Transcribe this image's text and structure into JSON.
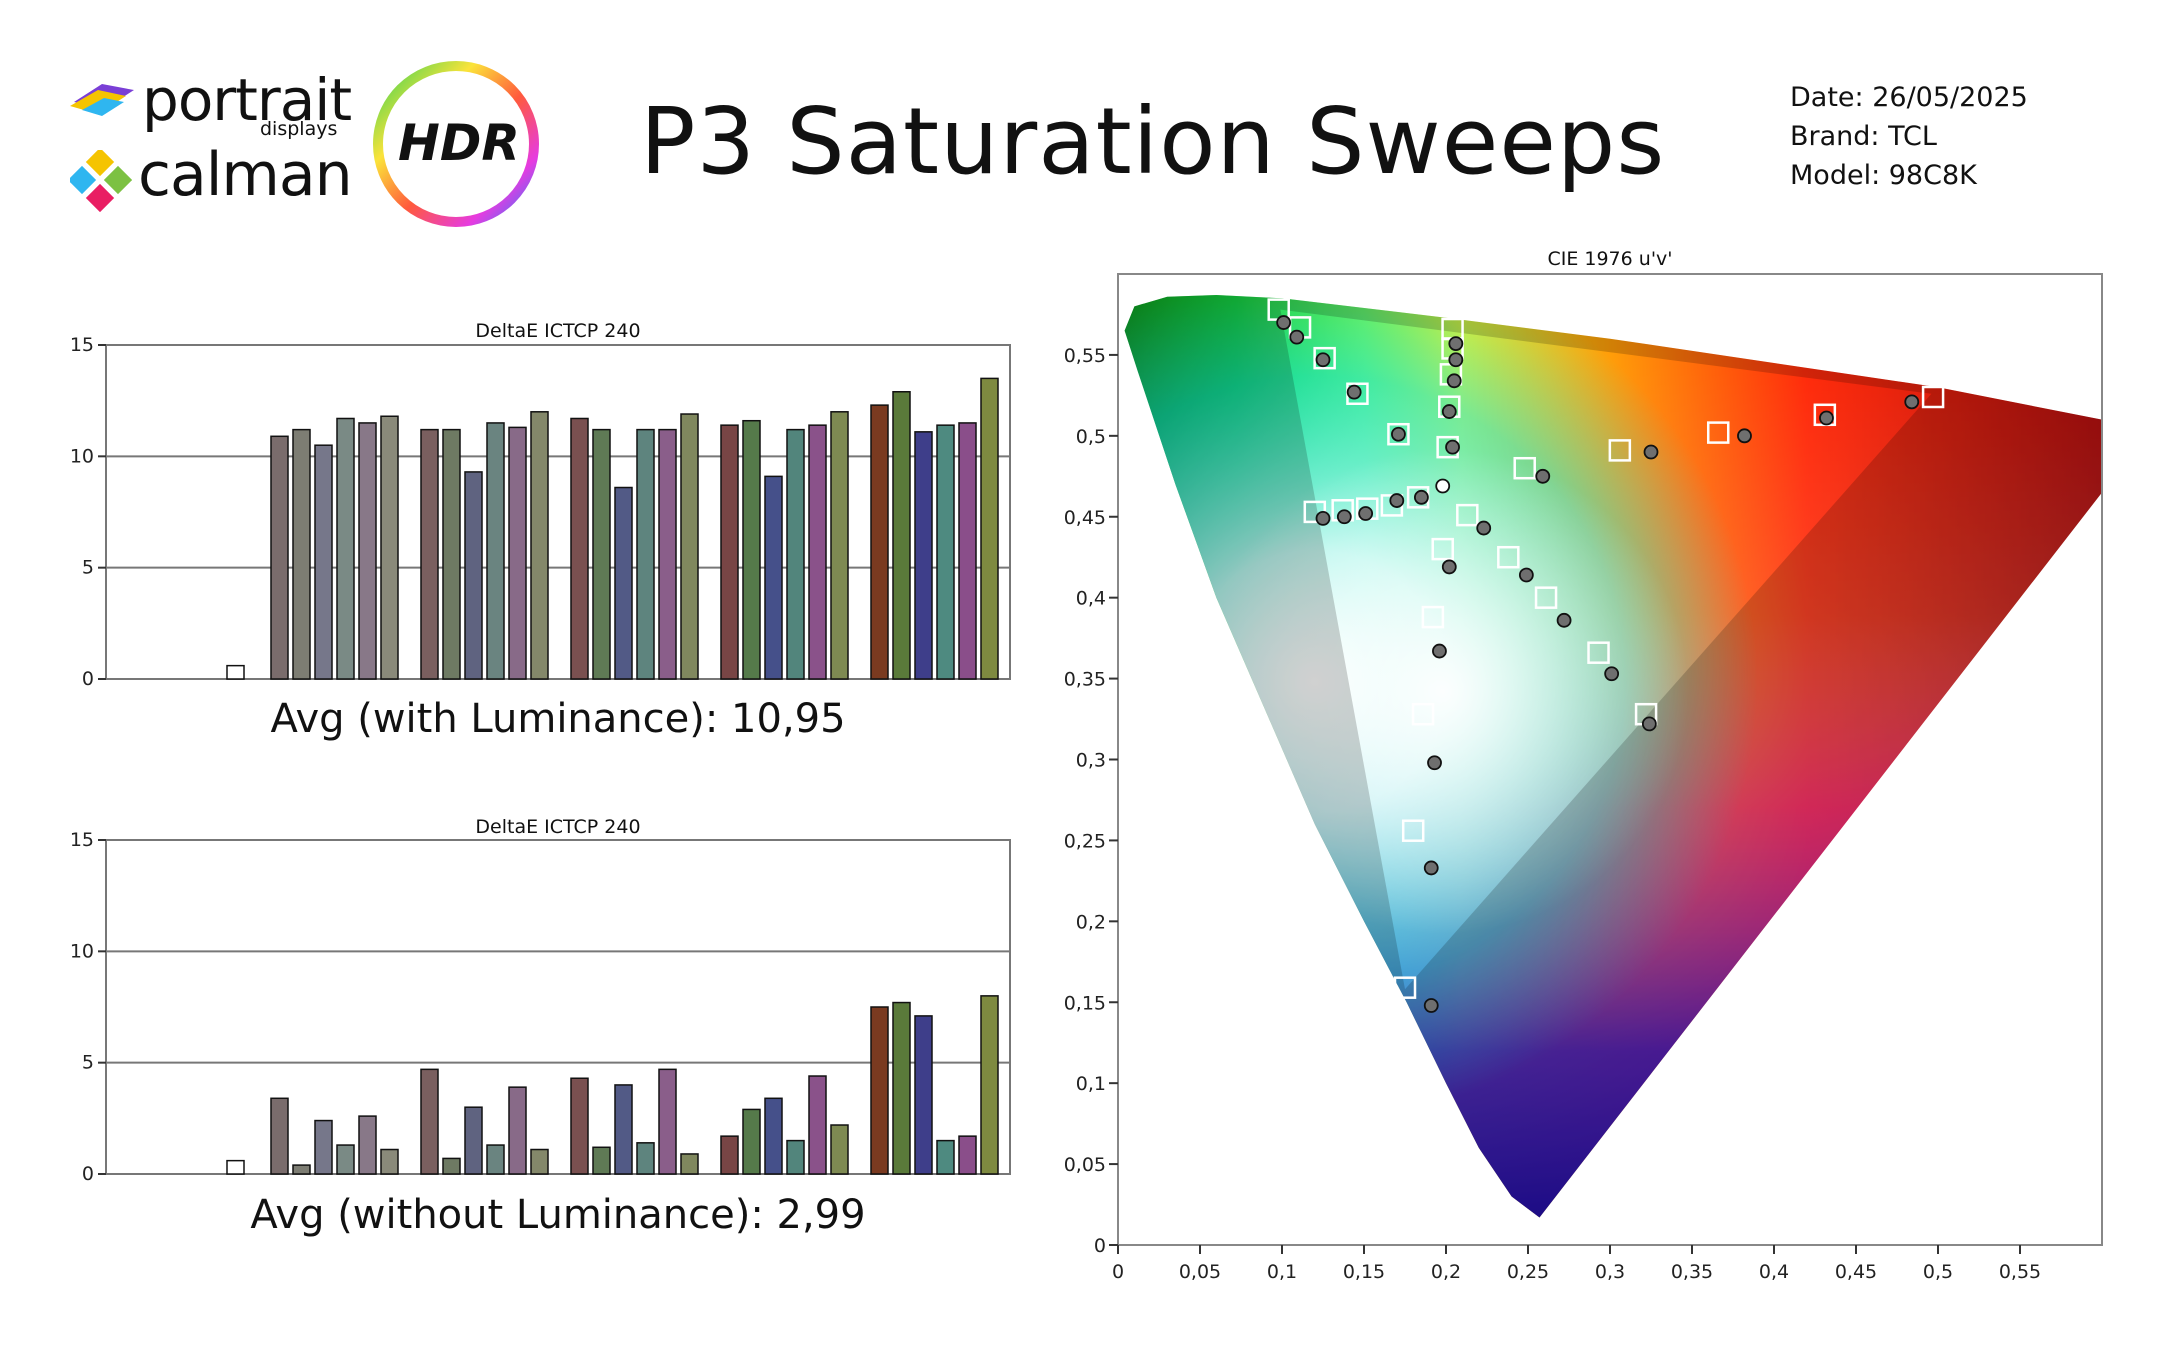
{
  "header": {
    "title": "P3 Saturation Sweeps",
    "logo_top": "portrait",
    "logo_top_sub": "displays",
    "logo_bottom": "calman",
    "badge": "HDR",
    "date": "Date: 26/05/2025",
    "brand": "Brand: TCL",
    "model": "Model: 98C8K"
  },
  "chart_data": [
    {
      "type": "bar",
      "title": "DeltaE ICTCP 240",
      "footer": "Avg (with Luminance): 10,95",
      "ylim": [
        0,
        15
      ],
      "yticks": [
        "0",
        "5",
        "10",
        "15"
      ],
      "groups": [
        {
          "values": [
            0.6
          ],
          "colors": [
            "#ffffff"
          ]
        },
        {
          "values": [
            10.9,
            11.2,
            10.5,
            11.7,
            11.5,
            11.8
          ],
          "colors": [
            "#7a6c6c",
            "#7d7d73",
            "#76778a",
            "#7a8a85",
            "#887888",
            "#8a8a7a"
          ]
        },
        {
          "values": [
            11.2,
            11.2,
            9.3,
            11.5,
            11.3,
            12.0
          ],
          "colors": [
            "#7a5f5f",
            "#6e7a63",
            "#5f6380",
            "#6a8480",
            "#886a88",
            "#84886a"
          ]
        },
        {
          "values": [
            11.7,
            11.2,
            8.6,
            11.2,
            11.2,
            11.9
          ],
          "colors": [
            "#7a5050",
            "#5f7a55",
            "#525a86",
            "#5e847e",
            "#8a5e8a",
            "#80885e"
          ]
        },
        {
          "values": [
            11.4,
            11.6,
            9.1,
            11.2,
            11.4,
            12.0
          ],
          "colors": [
            "#784545",
            "#557a4a",
            "#45508a",
            "#52857c",
            "#8a528a",
            "#7e8a52"
          ]
        },
        {
          "values": [
            12.3,
            12.9,
            11.1,
            11.4,
            11.5,
            13.5
          ],
          "colors": [
            "#7a3a20",
            "#5a7a3a",
            "#3e3e8a",
            "#4e8a80",
            "#8a4e8a",
            "#7e8a40"
          ]
        }
      ]
    },
    {
      "type": "bar",
      "title": "DeltaE ICTCP 240",
      "footer": "Avg (without Luminance): 2,99",
      "ylim": [
        0,
        15
      ],
      "yticks": [
        "0",
        "5",
        "10",
        "15"
      ],
      "groups": [
        {
          "values": [
            0.6
          ],
          "colors": [
            "#ffffff"
          ]
        },
        {
          "values": [
            3.4,
            0.4,
            2.4,
            1.3,
            2.6,
            1.1
          ],
          "colors": [
            "#7a6c6c",
            "#7d7d73",
            "#76778a",
            "#7a8a85",
            "#887888",
            "#8a8a7a"
          ]
        },
        {
          "values": [
            4.7,
            0.7,
            3.0,
            1.3,
            3.9,
            1.1
          ],
          "colors": [
            "#7a5f5f",
            "#6e7a63",
            "#5f6380",
            "#6a8480",
            "#886a88",
            "#84886a"
          ]
        },
        {
          "values": [
            4.3,
            1.2,
            4.0,
            1.4,
            4.7,
            0.9
          ],
          "colors": [
            "#7a5050",
            "#5f7a55",
            "#525a86",
            "#5e847e",
            "#8a5e8a",
            "#80885e"
          ]
        },
        {
          "values": [
            1.7,
            2.9,
            3.4,
            1.5,
            4.4,
            2.2
          ],
          "colors": [
            "#784545",
            "#557a4a",
            "#45508a",
            "#52857c",
            "#8a528a",
            "#7e8a52"
          ]
        },
        {
          "values": [
            7.5,
            7.7,
            7.1,
            1.5,
            1.7,
            8.0
          ],
          "colors": [
            "#7a3a20",
            "#5a7a3a",
            "#3e3e8a",
            "#4e8a80",
            "#8a4e8a",
            "#7e8a40"
          ]
        }
      ]
    },
    {
      "type": "scatter",
      "title": "CIE 1976 u'v'",
      "xlim": [
        0,
        0.6
      ],
      "ylim": [
        0,
        0.6
      ],
      "xticks": [
        "0",
        "0,05",
        "0,1",
        "0,15",
        "0,2",
        "0,25",
        "0,3",
        "0,35",
        "0,4",
        "0,45",
        "0,5",
        "0,55"
      ],
      "yticks": [
        "0",
        "0,05",
        "0,1",
        "0,15",
        "0,2",
        "0,25",
        "0,3",
        "0,35",
        "0,4",
        "0,45",
        "0,5",
        "0,55"
      ],
      "white_point": [
        0.198,
        0.469
      ],
      "targets": [
        [
          0.213,
          0.451
        ],
        [
          0.238,
          0.425
        ],
        [
          0.261,
          0.4
        ],
        [
          0.293,
          0.366
        ],
        [
          0.322,
          0.328
        ],
        [
          0.183,
          0.462
        ],
        [
          0.167,
          0.457
        ],
        [
          0.152,
          0.455
        ],
        [
          0.137,
          0.454
        ],
        [
          0.12,
          0.453
        ],
        [
          0.198,
          0.43
        ],
        [
          0.192,
          0.388
        ],
        [
          0.186,
          0.328
        ],
        [
          0.18,
          0.256
        ],
        [
          0.175,
          0.159
        ],
        [
          0.248,
          0.48
        ],
        [
          0.306,
          0.491
        ],
        [
          0.366,
          0.502
        ],
        [
          0.431,
          0.513
        ],
        [
          0.497,
          0.524
        ],
        [
          0.171,
          0.501
        ],
        [
          0.146,
          0.526
        ],
        [
          0.126,
          0.548
        ],
        [
          0.111,
          0.567
        ],
        [
          0.098,
          0.578
        ],
        [
          0.201,
          0.493
        ],
        [
          0.202,
          0.518
        ],
        [
          0.203,
          0.538
        ],
        [
          0.204,
          0.554
        ],
        [
          0.204,
          0.566
        ]
      ],
      "measured": [
        [
          0.223,
          0.443
        ],
        [
          0.249,
          0.414
        ],
        [
          0.272,
          0.386
        ],
        [
          0.301,
          0.353
        ],
        [
          0.324,
          0.322
        ],
        [
          0.185,
          0.462
        ],
        [
          0.17,
          0.46
        ],
        [
          0.151,
          0.452
        ],
        [
          0.138,
          0.45
        ],
        [
          0.125,
          0.449
        ],
        [
          0.202,
          0.419
        ],
        [
          0.196,
          0.367
        ],
        [
          0.193,
          0.298
        ],
        [
          0.191,
          0.233
        ],
        [
          0.191,
          0.148
        ],
        [
          0.259,
          0.475
        ],
        [
          0.325,
          0.49
        ],
        [
          0.382,
          0.5
        ],
        [
          0.432,
          0.511
        ],
        [
          0.484,
          0.521
        ],
        [
          0.171,
          0.501
        ],
        [
          0.144,
          0.527
        ],
        [
          0.125,
          0.547
        ],
        [
          0.109,
          0.561
        ],
        [
          0.101,
          0.57
        ],
        [
          0.204,
          0.493
        ],
        [
          0.202,
          0.515
        ],
        [
          0.205,
          0.534
        ],
        [
          0.206,
          0.547
        ],
        [
          0.206,
          0.557
        ]
      ]
    }
  ]
}
